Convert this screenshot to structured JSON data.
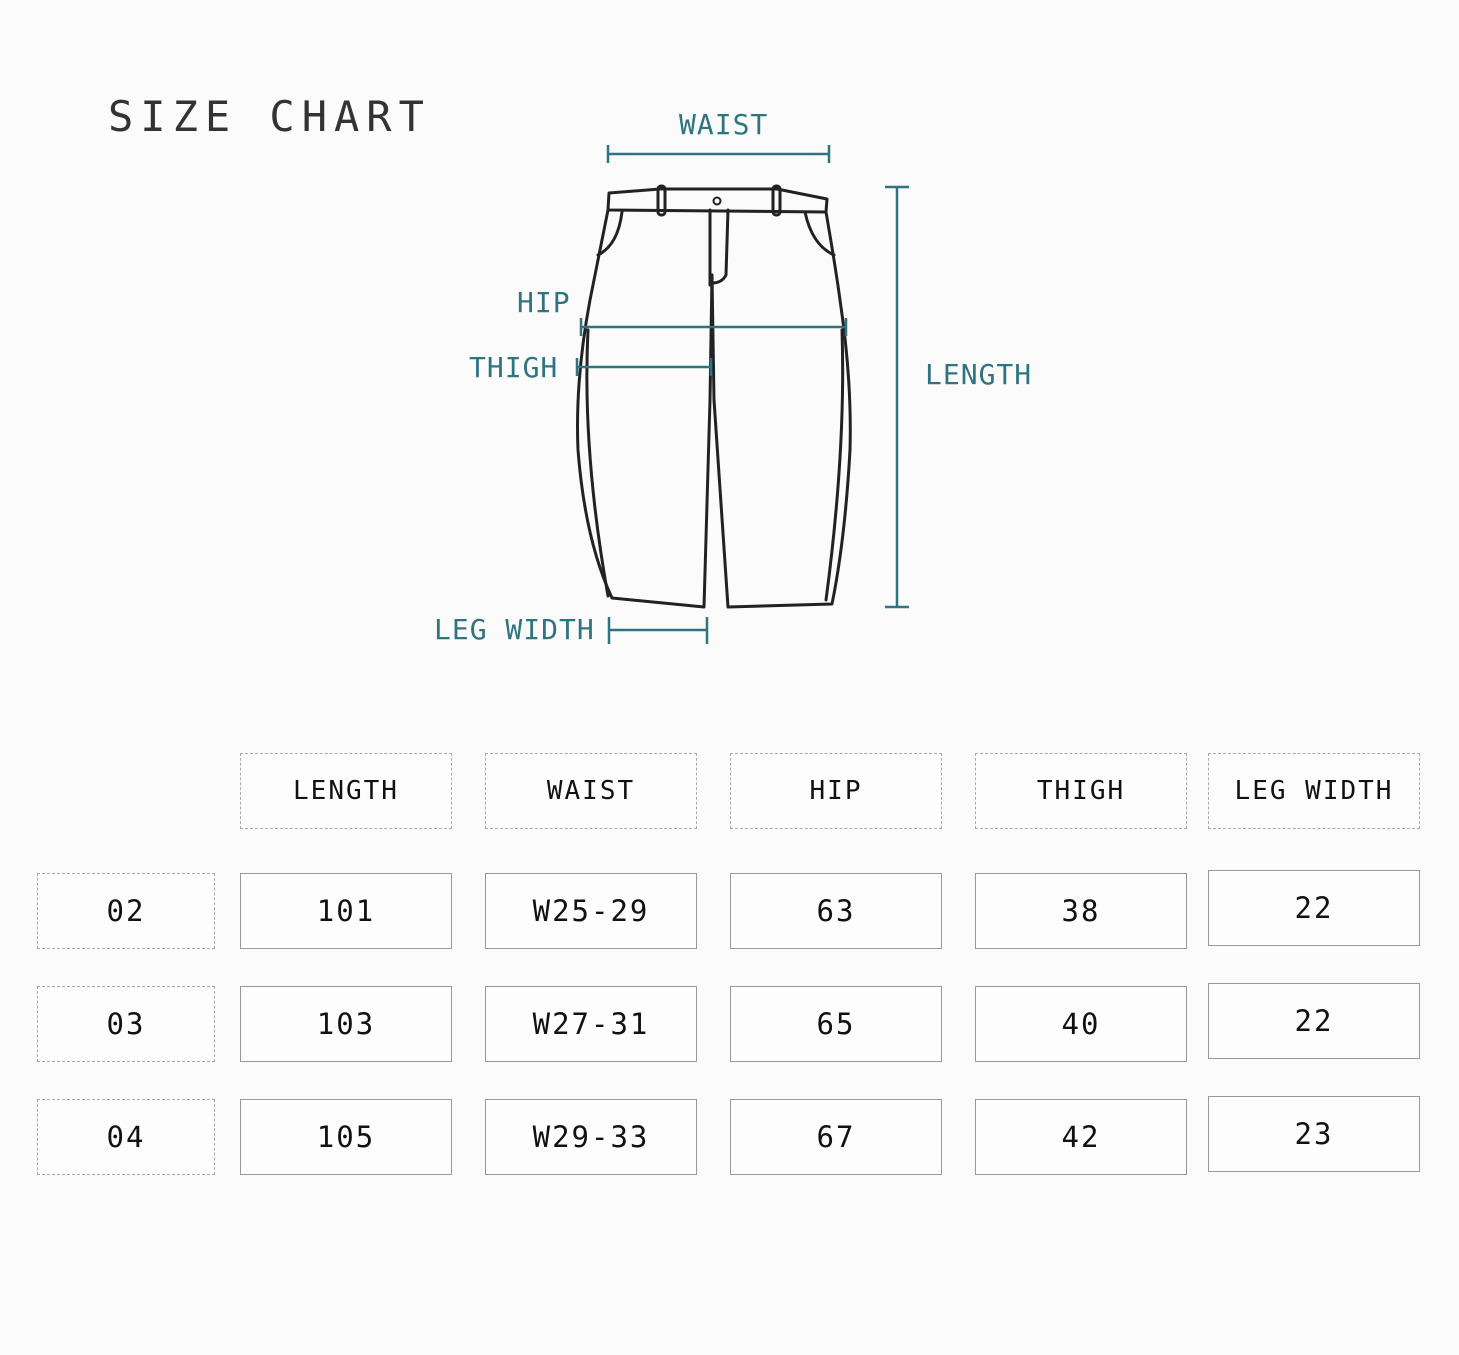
{
  "title": "SIZE CHART",
  "diagram": {
    "accent_color": "#2f7480",
    "labels": {
      "waist": "WAIST",
      "hip": "HIP",
      "thigh": "THIGH",
      "length": "LENGTH",
      "leg_width": "LEG WIDTH"
    }
  },
  "table": {
    "headers": [
      "LENGTH",
      "WAIST",
      "HIP",
      "THIGH",
      "LEG WIDTH"
    ],
    "rows": [
      {
        "size": "02",
        "values": [
          "101",
          "W25-29",
          "63",
          "38",
          "22"
        ]
      },
      {
        "size": "03",
        "values": [
          "103",
          "W27-31",
          "65",
          "40",
          "22"
        ]
      },
      {
        "size": "04",
        "values": [
          "105",
          "W29-33",
          "67",
          "42",
          "23"
        ]
      }
    ]
  }
}
